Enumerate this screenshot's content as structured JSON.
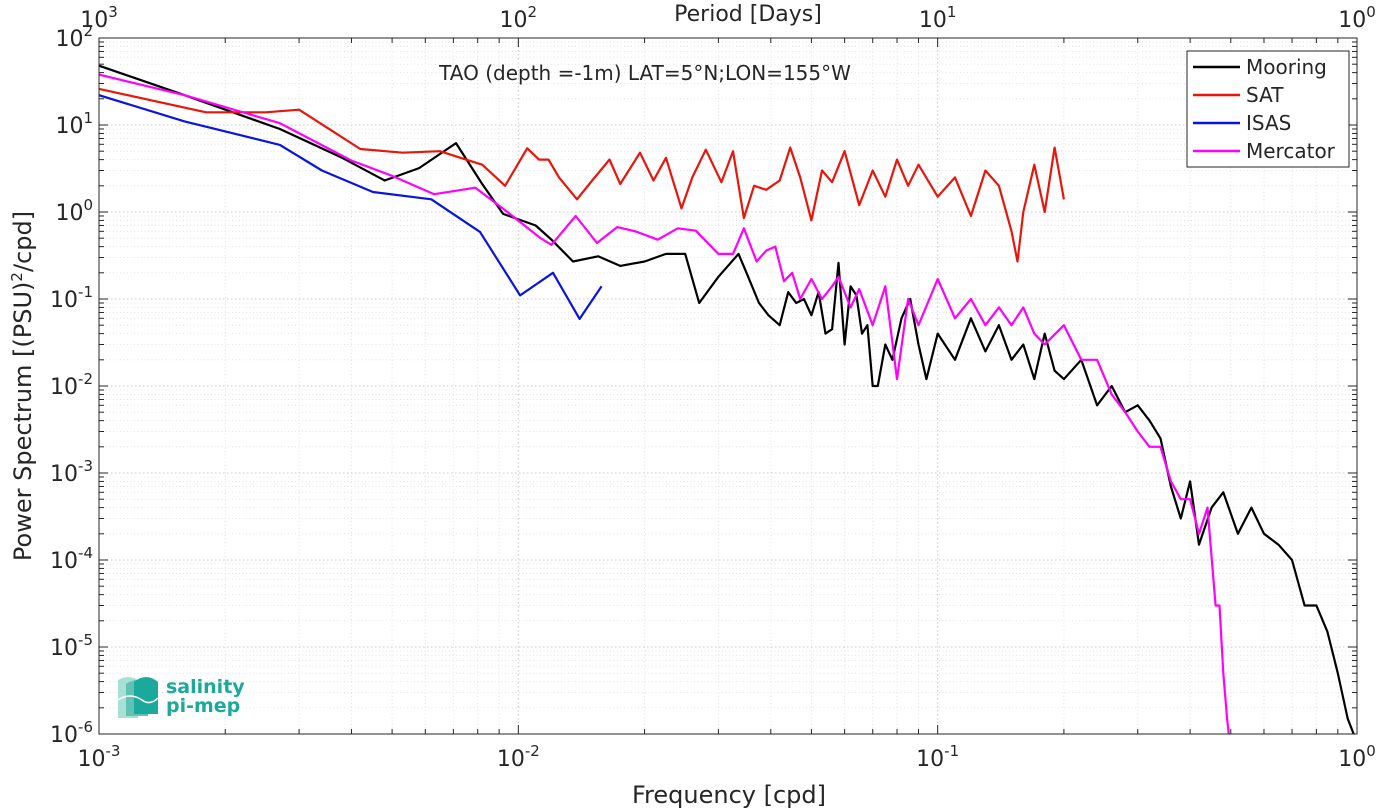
{
  "chart_data": {
    "type": "line",
    "title": "TAO (depth =-1m) LAT=5°N;LON=155°W",
    "xlabel": "Frequency [cpd]",
    "ylabel_main": "Power Spectrum [(PSU)",
    "ylabel_sup": "2",
    "ylabel_tail": "/cpd]",
    "top_xlabel": "Period [Days]",
    "x_scale": "log",
    "y_scale": "log",
    "xlim": [
      0.001,
      1
    ],
    "ylim": [
      1e-06,
      100
    ],
    "grid": true,
    "legend_position": "top-right",
    "x_ticks": [
      {
        "base": "10",
        "exp": "-3",
        "value": 0.001
      },
      {
        "base": "10",
        "exp": "-2",
        "value": 0.01
      },
      {
        "base": "10",
        "exp": "-1",
        "value": 0.1
      },
      {
        "base": "10",
        "exp": "0",
        "value": 1
      }
    ],
    "top_ticks": [
      {
        "base": "10",
        "exp": "3",
        "freq": 0.001
      },
      {
        "base": "10",
        "exp": "2",
        "freq": 0.01
      },
      {
        "base": "10",
        "exp": "1",
        "freq": 0.1
      },
      {
        "base": "10",
        "exp": "0",
        "freq": 1
      }
    ],
    "y_ticks": [
      {
        "base": "10",
        "exp": "2",
        "value": 100
      },
      {
        "base": "10",
        "exp": "1",
        "value": 10
      },
      {
        "base": "10",
        "exp": "0",
        "value": 1
      },
      {
        "base": "10",
        "exp": "-1",
        "value": 0.1
      },
      {
        "base": "10",
        "exp": "-2",
        "value": 0.01
      },
      {
        "base": "10",
        "exp": "-3",
        "value": 0.001
      },
      {
        "base": "10",
        "exp": "-4",
        "value": 0.0001
      },
      {
        "base": "10",
        "exp": "-5",
        "value": 1e-05
      },
      {
        "base": "10",
        "exp": "-6",
        "value": 1e-06
      }
    ],
    "series": [
      {
        "name": "Mooring",
        "color": "#000000",
        "points": [
          [
            0.001,
            48
          ],
          [
            0.0016,
            22
          ],
          [
            0.0027,
            9
          ],
          [
            0.0038,
            4.2
          ],
          [
            0.0048,
            2.3
          ],
          [
            0.0058,
            3.2
          ],
          [
            0.0071,
            6.2
          ],
          [
            0.0082,
            2.1
          ],
          [
            0.0092,
            0.95
          ],
          [
            0.011,
            0.7
          ],
          [
            0.012,
            0.48
          ],
          [
            0.0135,
            0.27
          ],
          [
            0.0155,
            0.31
          ],
          [
            0.0175,
            0.24
          ],
          [
            0.02,
            0.27
          ],
          [
            0.0225,
            0.33
          ],
          [
            0.025,
            0.33
          ],
          [
            0.027,
            0.09
          ],
          [
            0.03,
            0.18
          ],
          [
            0.0335,
            0.33
          ],
          [
            0.035,
            0.2
          ],
          [
            0.0375,
            0.09
          ],
          [
            0.0395,
            0.065
          ],
          [
            0.042,
            0.05
          ],
          [
            0.044,
            0.12
          ],
          [
            0.046,
            0.09
          ],
          [
            0.048,
            0.1
          ],
          [
            0.05,
            0.065
          ],
          [
            0.052,
            0.12
          ],
          [
            0.054,
            0.04
          ],
          [
            0.056,
            0.045
          ],
          [
            0.058,
            0.26
          ],
          [
            0.06,
            0.03
          ],
          [
            0.062,
            0.14
          ],
          [
            0.064,
            0.11
          ],
          [
            0.066,
            0.04
          ],
          [
            0.068,
            0.05
          ],
          [
            0.07,
            0.01
          ],
          [
            0.072,
            0.01
          ],
          [
            0.075,
            0.03
          ],
          [
            0.078,
            0.02
          ],
          [
            0.082,
            0.06
          ],
          [
            0.086,
            0.1
          ],
          [
            0.09,
            0.03
          ],
          [
            0.094,
            0.012
          ],
          [
            0.1,
            0.04
          ],
          [
            0.11,
            0.02
          ],
          [
            0.12,
            0.06
          ],
          [
            0.13,
            0.025
          ],
          [
            0.14,
            0.05
          ],
          [
            0.15,
            0.02
          ],
          [
            0.16,
            0.03
          ],
          [
            0.17,
            0.012
          ],
          [
            0.18,
            0.04
          ],
          [
            0.19,
            0.015
          ],
          [
            0.2,
            0.012
          ],
          [
            0.22,
            0.02
          ],
          [
            0.24,
            0.006
          ],
          [
            0.26,
            0.01
          ],
          [
            0.28,
            0.005
          ],
          [
            0.3,
            0.006
          ],
          [
            0.32,
            0.004
          ],
          [
            0.34,
            0.0025
          ],
          [
            0.36,
            0.0007
          ],
          [
            0.38,
            0.0003
          ],
          [
            0.4,
            0.0008
          ],
          [
            0.42,
            0.00015
          ],
          [
            0.45,
            0.0004
          ],
          [
            0.48,
            0.0006
          ],
          [
            0.52,
            0.0002
          ],
          [
            0.56,
            0.0004
          ],
          [
            0.6,
            0.0002
          ],
          [
            0.65,
            0.00015
          ],
          [
            0.7,
            0.0001
          ],
          [
            0.75,
            3e-05
          ],
          [
            0.8,
            3e-05
          ],
          [
            0.85,
            1.5e-05
          ],
          [
            0.9,
            5e-06
          ],
          [
            0.95,
            1.5e-06
          ],
          [
            1,
            8e-07
          ]
        ]
      },
      {
        "name": "SAT",
        "color": "#e8150b",
        "points": [
          [
            0.001,
            26
          ],
          [
            0.0018,
            14
          ],
          [
            0.0025,
            14
          ],
          [
            0.003,
            15
          ],
          [
            0.0042,
            5.3
          ],
          [
            0.0053,
            4.8
          ],
          [
            0.0065,
            5
          ],
          [
            0.0075,
            4
          ],
          [
            0.0082,
            3.5
          ],
          [
            0.0093,
            2
          ],
          [
            0.0105,
            5.4
          ],
          [
            0.0112,
            4
          ],
          [
            0.0118,
            4
          ],
          [
            0.0125,
            2.5
          ],
          [
            0.0138,
            1.4
          ],
          [
            0.015,
            2.3
          ],
          [
            0.0165,
            4
          ],
          [
            0.0175,
            2.1
          ],
          [
            0.0195,
            4.8
          ],
          [
            0.021,
            2.3
          ],
          [
            0.0225,
            4.2
          ],
          [
            0.0245,
            1.1
          ],
          [
            0.026,
            2.5
          ],
          [
            0.028,
            5.2
          ],
          [
            0.0305,
            2.2
          ],
          [
            0.0325,
            5
          ],
          [
            0.0345,
            0.85
          ],
          [
            0.0365,
            2
          ],
          [
            0.039,
            1.8
          ],
          [
            0.042,
            2.3
          ],
          [
            0.0445,
            5.5
          ],
          [
            0.047,
            2.5
          ],
          [
            0.05,
            0.8
          ],
          [
            0.053,
            3
          ],
          [
            0.056,
            2.2
          ],
          [
            0.06,
            5
          ],
          [
            0.065,
            1.2
          ],
          [
            0.07,
            3
          ],
          [
            0.075,
            1.5
          ],
          [
            0.08,
            4
          ],
          [
            0.085,
            2
          ],
          [
            0.09,
            3.5
          ],
          [
            0.1,
            1.5
          ],
          [
            0.11,
            2.5
          ],
          [
            0.12,
            0.9
          ],
          [
            0.13,
            3
          ],
          [
            0.14,
            2
          ],
          [
            0.15,
            0.6
          ],
          [
            0.155,
            0.27
          ],
          [
            0.16,
            1
          ],
          [
            0.17,
            3.5
          ],
          [
            0.18,
            1
          ],
          [
            0.19,
            5.5
          ],
          [
            0.2,
            1.4
          ]
        ]
      },
      {
        "name": "ISAS",
        "color": "#0a14de",
        "points": [
          [
            0.001,
            22
          ],
          [
            0.0016,
            11
          ],
          [
            0.0027,
            5.9
          ],
          [
            0.0034,
            3
          ],
          [
            0.0045,
            1.7
          ],
          [
            0.0062,
            1.4
          ],
          [
            0.0081,
            0.59
          ],
          [
            0.0101,
            0.11
          ],
          [
            0.0121,
            0.2
          ],
          [
            0.014,
            0.059
          ],
          [
            0.0158,
            0.14
          ]
        ]
      },
      {
        "name": "Mercator",
        "color": "#ff00ff",
        "points": [
          [
            0.001,
            38
          ],
          [
            0.0016,
            22
          ],
          [
            0.0027,
            10.5
          ],
          [
            0.004,
            3.9
          ],
          [
            0.005,
            2.6
          ],
          [
            0.0063,
            1.6
          ],
          [
            0.0079,
            1.9
          ],
          [
            0.0095,
            0.97
          ],
          [
            0.0113,
            0.5
          ],
          [
            0.012,
            0.42
          ],
          [
            0.0137,
            0.9
          ],
          [
            0.0154,
            0.44
          ],
          [
            0.0172,
            0.67
          ],
          [
            0.019,
            0.6
          ],
          [
            0.0215,
            0.48
          ],
          [
            0.024,
            0.65
          ],
          [
            0.0265,
            0.61
          ],
          [
            0.03,
            0.33
          ],
          [
            0.0325,
            0.33
          ],
          [
            0.0345,
            0.65
          ],
          [
            0.037,
            0.27
          ],
          [
            0.039,
            0.36
          ],
          [
            0.041,
            0.4
          ],
          [
            0.043,
            0.16
          ],
          [
            0.045,
            0.2
          ],
          [
            0.047,
            0.1
          ],
          [
            0.05,
            0.17
          ],
          [
            0.053,
            0.1
          ],
          [
            0.056,
            0.14
          ],
          [
            0.058,
            0.18
          ],
          [
            0.062,
            0.08
          ],
          [
            0.065,
            0.13
          ],
          [
            0.07,
            0.05
          ],
          [
            0.075,
            0.14
          ],
          [
            0.08,
            0.012
          ],
          [
            0.085,
            0.1
          ],
          [
            0.09,
            0.05
          ],
          [
            0.1,
            0.17
          ],
          [
            0.11,
            0.06
          ],
          [
            0.12,
            0.1
          ],
          [
            0.13,
            0.05
          ],
          [
            0.14,
            0.08
          ],
          [
            0.15,
            0.05
          ],
          [
            0.16,
            0.08
          ],
          [
            0.17,
            0.04
          ],
          [
            0.18,
            0.03
          ],
          [
            0.2,
            0.05
          ],
          [
            0.22,
            0.02
          ],
          [
            0.24,
            0.02
          ],
          [
            0.26,
            0.008
          ],
          [
            0.28,
            0.005
          ],
          [
            0.3,
            0.003
          ],
          [
            0.32,
            0.002
          ],
          [
            0.34,
            0.002
          ],
          [
            0.36,
            0.0008
          ],
          [
            0.38,
            0.0005
          ],
          [
            0.4,
            0.0005
          ],
          [
            0.42,
            0.0002
          ],
          [
            0.44,
            0.0004
          ],
          [
            0.46,
            3e-05
          ],
          [
            0.47,
            3e-05
          ],
          [
            0.48,
            5e-06
          ],
          [
            0.49,
            1.5e-06
          ],
          [
            0.5,
            6e-07
          ]
        ]
      }
    ]
  },
  "logo": {
    "line1": "salinity",
    "line2": "pi-mep",
    "color": "#1ba99b"
  }
}
